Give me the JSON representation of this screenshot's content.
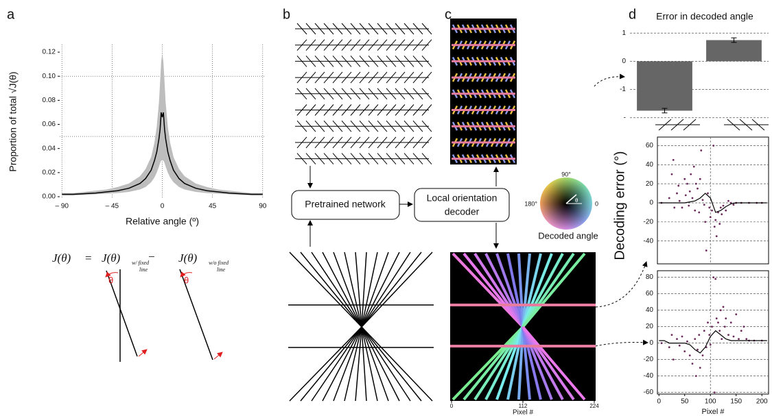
{
  "panel_labels": [
    "a",
    "b",
    "c",
    "d"
  ],
  "equation": {
    "lhs": "J(θ)",
    "equals": "=",
    "term1": "J(θ)",
    "sub1": "w/ fixed",
    "sub1b": "line",
    "minus": "−",
    "term2": "J(θ)",
    "sub2": "w/o fixed",
    "sub2b": "line",
    "theta": "θ"
  },
  "diagram": {
    "network": "Pretrained network",
    "decoder": [
      "Local orientation",
      "decoder"
    ],
    "wheel": {
      "top": "90°",
      "left": "180°",
      "right": "0",
      "center": "θ",
      "caption": "Decoded angle"
    }
  },
  "image_axis": {
    "xticks": [
      0,
      112,
      224
    ],
    "xlabel": "Pixel #"
  },
  "shared_ylabel": "Decoding error (°)",
  "chart_data": [
    {
      "type": "line",
      "ylabel": "Proportion of total √J(θ)",
      "xlabel": "Relative angle (º)",
      "x": [
        -90,
        -80,
        -70,
        -60,
        -50,
        -40,
        -30,
        -20,
        -15,
        -10,
        -7,
        -5,
        -3,
        -2,
        -1,
        0,
        1,
        2,
        3,
        5,
        7,
        10,
        15,
        20,
        30,
        40,
        50,
        60,
        70,
        80,
        90
      ],
      "series": [
        {
          "color": "#000000",
          "values": [
            0.002,
            0.002,
            0.0025,
            0.003,
            0.004,
            0.005,
            0.007,
            0.011,
            0.015,
            0.022,
            0.03,
            0.037,
            0.048,
            0.056,
            0.07,
            0.066,
            0.07,
            0.056,
            0.048,
            0.037,
            0.03,
            0.022,
            0.015,
            0.011,
            0.007,
            0.005,
            0.004,
            0.003,
            0.0025,
            0.002,
            0.002
          ]
        }
      ],
      "band": {
        "color": "#bdbdbd",
        "upper": [
          0.003,
          0.003,
          0.004,
          0.005,
          0.006,
          0.008,
          0.011,
          0.017,
          0.023,
          0.033,
          0.045,
          0.058,
          0.078,
          0.095,
          0.112,
          0.119,
          0.112,
          0.095,
          0.078,
          0.058,
          0.045,
          0.033,
          0.023,
          0.017,
          0.011,
          0.008,
          0.006,
          0.005,
          0.004,
          0.003,
          0.003
        ],
        "lower": [
          0.001,
          0.001,
          0.0015,
          0.002,
          0.0025,
          0.003,
          0.004,
          0.006,
          0.008,
          0.012,
          0.016,
          0.02,
          0.025,
          0.028,
          0.03,
          0.03,
          0.03,
          0.028,
          0.025,
          0.02,
          0.016,
          0.012,
          0.008,
          0.006,
          0.004,
          0.003,
          0.0025,
          0.002,
          0.0015,
          0.001,
          0.001
        ]
      },
      "xlim": [
        -92,
        92
      ],
      "ylim": [
        -0.0017,
        0.1263
      ],
      "xticks": [
        {
          "value": -90,
          "label": "– 90"
        },
        {
          "value": -45,
          "label": "– 45"
        },
        0,
        45,
        90
      ],
      "yticks": [
        {
          "value": 0,
          "label": "0.00"
        },
        0.02,
        0.04,
        0.06,
        0.08,
        {
          "value": 0.1,
          "label": "0.10"
        },
        0.12
      ],
      "grid": "x",
      "hlines": [
        0.05,
        0.1
      ]
    },
    {
      "type": "bar",
      "title": "Error in decoded angle",
      "values": [
        -1.75,
        0.75
      ],
      "errors": [
        0.08,
        0.08
      ],
      "color": "#666666",
      "ylim": [
        -2.2,
        1.2
      ],
      "yticks": [
        1,
        0,
        -1,
        {
          "value": -2,
          "label": "-"
        }
      ],
      "grid": "y"
    },
    {
      "type": "scatter",
      "xlim": [
        -3,
        213
      ],
      "ylim": [
        -64,
        69
      ],
      "yticks": [
        -40,
        -20,
        0,
        20,
        40,
        60
      ],
      "grid": "y",
      "vlines": [
        100
      ],
      "frame": true,
      "series": [
        {
          "color": "#6b2a5a",
          "x": [
            5,
            20,
            25,
            28,
            30,
            35,
            38,
            40,
            45,
            50,
            52,
            55,
            58,
            60,
            62,
            65,
            68,
            70,
            72,
            75,
            78,
            80,
            82,
            85,
            88,
            90,
            92,
            95,
            98,
            100,
            103,
            106,
            108,
            110,
            112,
            115,
            118,
            120,
            122,
            125,
            130,
            135,
            140,
            145,
            150,
            160,
            175,
            190,
            200
          ],
          "values": [
            0,
            5,
            30,
            45,
            -5,
            10,
            18,
            2,
            -5,
            25,
            8,
            20,
            -3,
            12,
            30,
            5,
            38,
            -8,
            20,
            15,
            -10,
            25,
            55,
            3,
            -2,
            -20,
            -50,
            10,
            -5,
            -15,
            -8,
            60,
            -25,
            -18,
            -35,
            -10,
            -22,
            -5,
            -12,
            -3,
            -8,
            2,
            0,
            -2,
            0,
            0,
            0,
            0,
            0
          ]
        }
      ],
      "fit": {
        "color": "#000000",
        "x": [
          0,
          10,
          20,
          30,
          40,
          50,
          60,
          70,
          80,
          90,
          100,
          110,
          120,
          130,
          140,
          150,
          160,
          170,
          180,
          190,
          200,
          210
        ],
        "values": [
          0,
          0,
          0,
          0,
          0,
          0,
          1,
          2,
          5,
          10,
          5,
          -10,
          -8,
          -4,
          -1,
          0,
          0,
          0,
          0,
          0,
          0,
          0
        ]
      }
    },
    {
      "type": "scatter",
      "xlabel": "Pixel #",
      "xlim": [
        -3,
        213
      ],
      "ylim": [
        -62,
        88
      ],
      "xticks": [
        0,
        50,
        100,
        150,
        200
      ],
      "yticks": [
        -60,
        -40,
        -20,
        0,
        20,
        40,
        60,
        80
      ],
      "grid": "y",
      "vlines": [
        100
      ],
      "frame": true,
      "series": [
        {
          "color": "#6b2a5a",
          "x": [
            5,
            20,
            25,
            28,
            35,
            40,
            45,
            50,
            55,
            60,
            65,
            70,
            72,
            75,
            78,
            80,
            85,
            88,
            92,
            95,
            98,
            100,
            103,
            106,
            108,
            110,
            112,
            115,
            118,
            120,
            122,
            125,
            128,
            130,
            135,
            140,
            145,
            150,
            155,
            160,
            165,
            170,
            175,
            185,
            200
          ],
          "values": [
            0,
            -5,
            10,
            -20,
            5,
            -3,
            8,
            -10,
            2,
            -15,
            -25,
            5,
            -40,
            -8,
            10,
            -30,
            -15,
            15,
            -5,
            25,
            10,
            -2,
            20,
            80,
            -60,
            78,
            30,
            25,
            15,
            40,
            5,
            44,
            20,
            30,
            10,
            25,
            8,
            35,
            5,
            15,
            20,
            5,
            3,
            3,
            3
          ]
        }
      ],
      "fit": {
        "color": "#000000",
        "x": [
          0,
          10,
          20,
          30,
          40,
          50,
          60,
          70,
          80,
          90,
          100,
          110,
          120,
          130,
          140,
          150,
          160,
          170,
          180,
          190,
          200,
          210
        ],
        "values": [
          3,
          3,
          0,
          0,
          0,
          0,
          -2,
          -8,
          -12,
          -5,
          8,
          15,
          10,
          5,
          3,
          3,
          3,
          3,
          3,
          3,
          3,
          3
        ]
      }
    }
  ]
}
